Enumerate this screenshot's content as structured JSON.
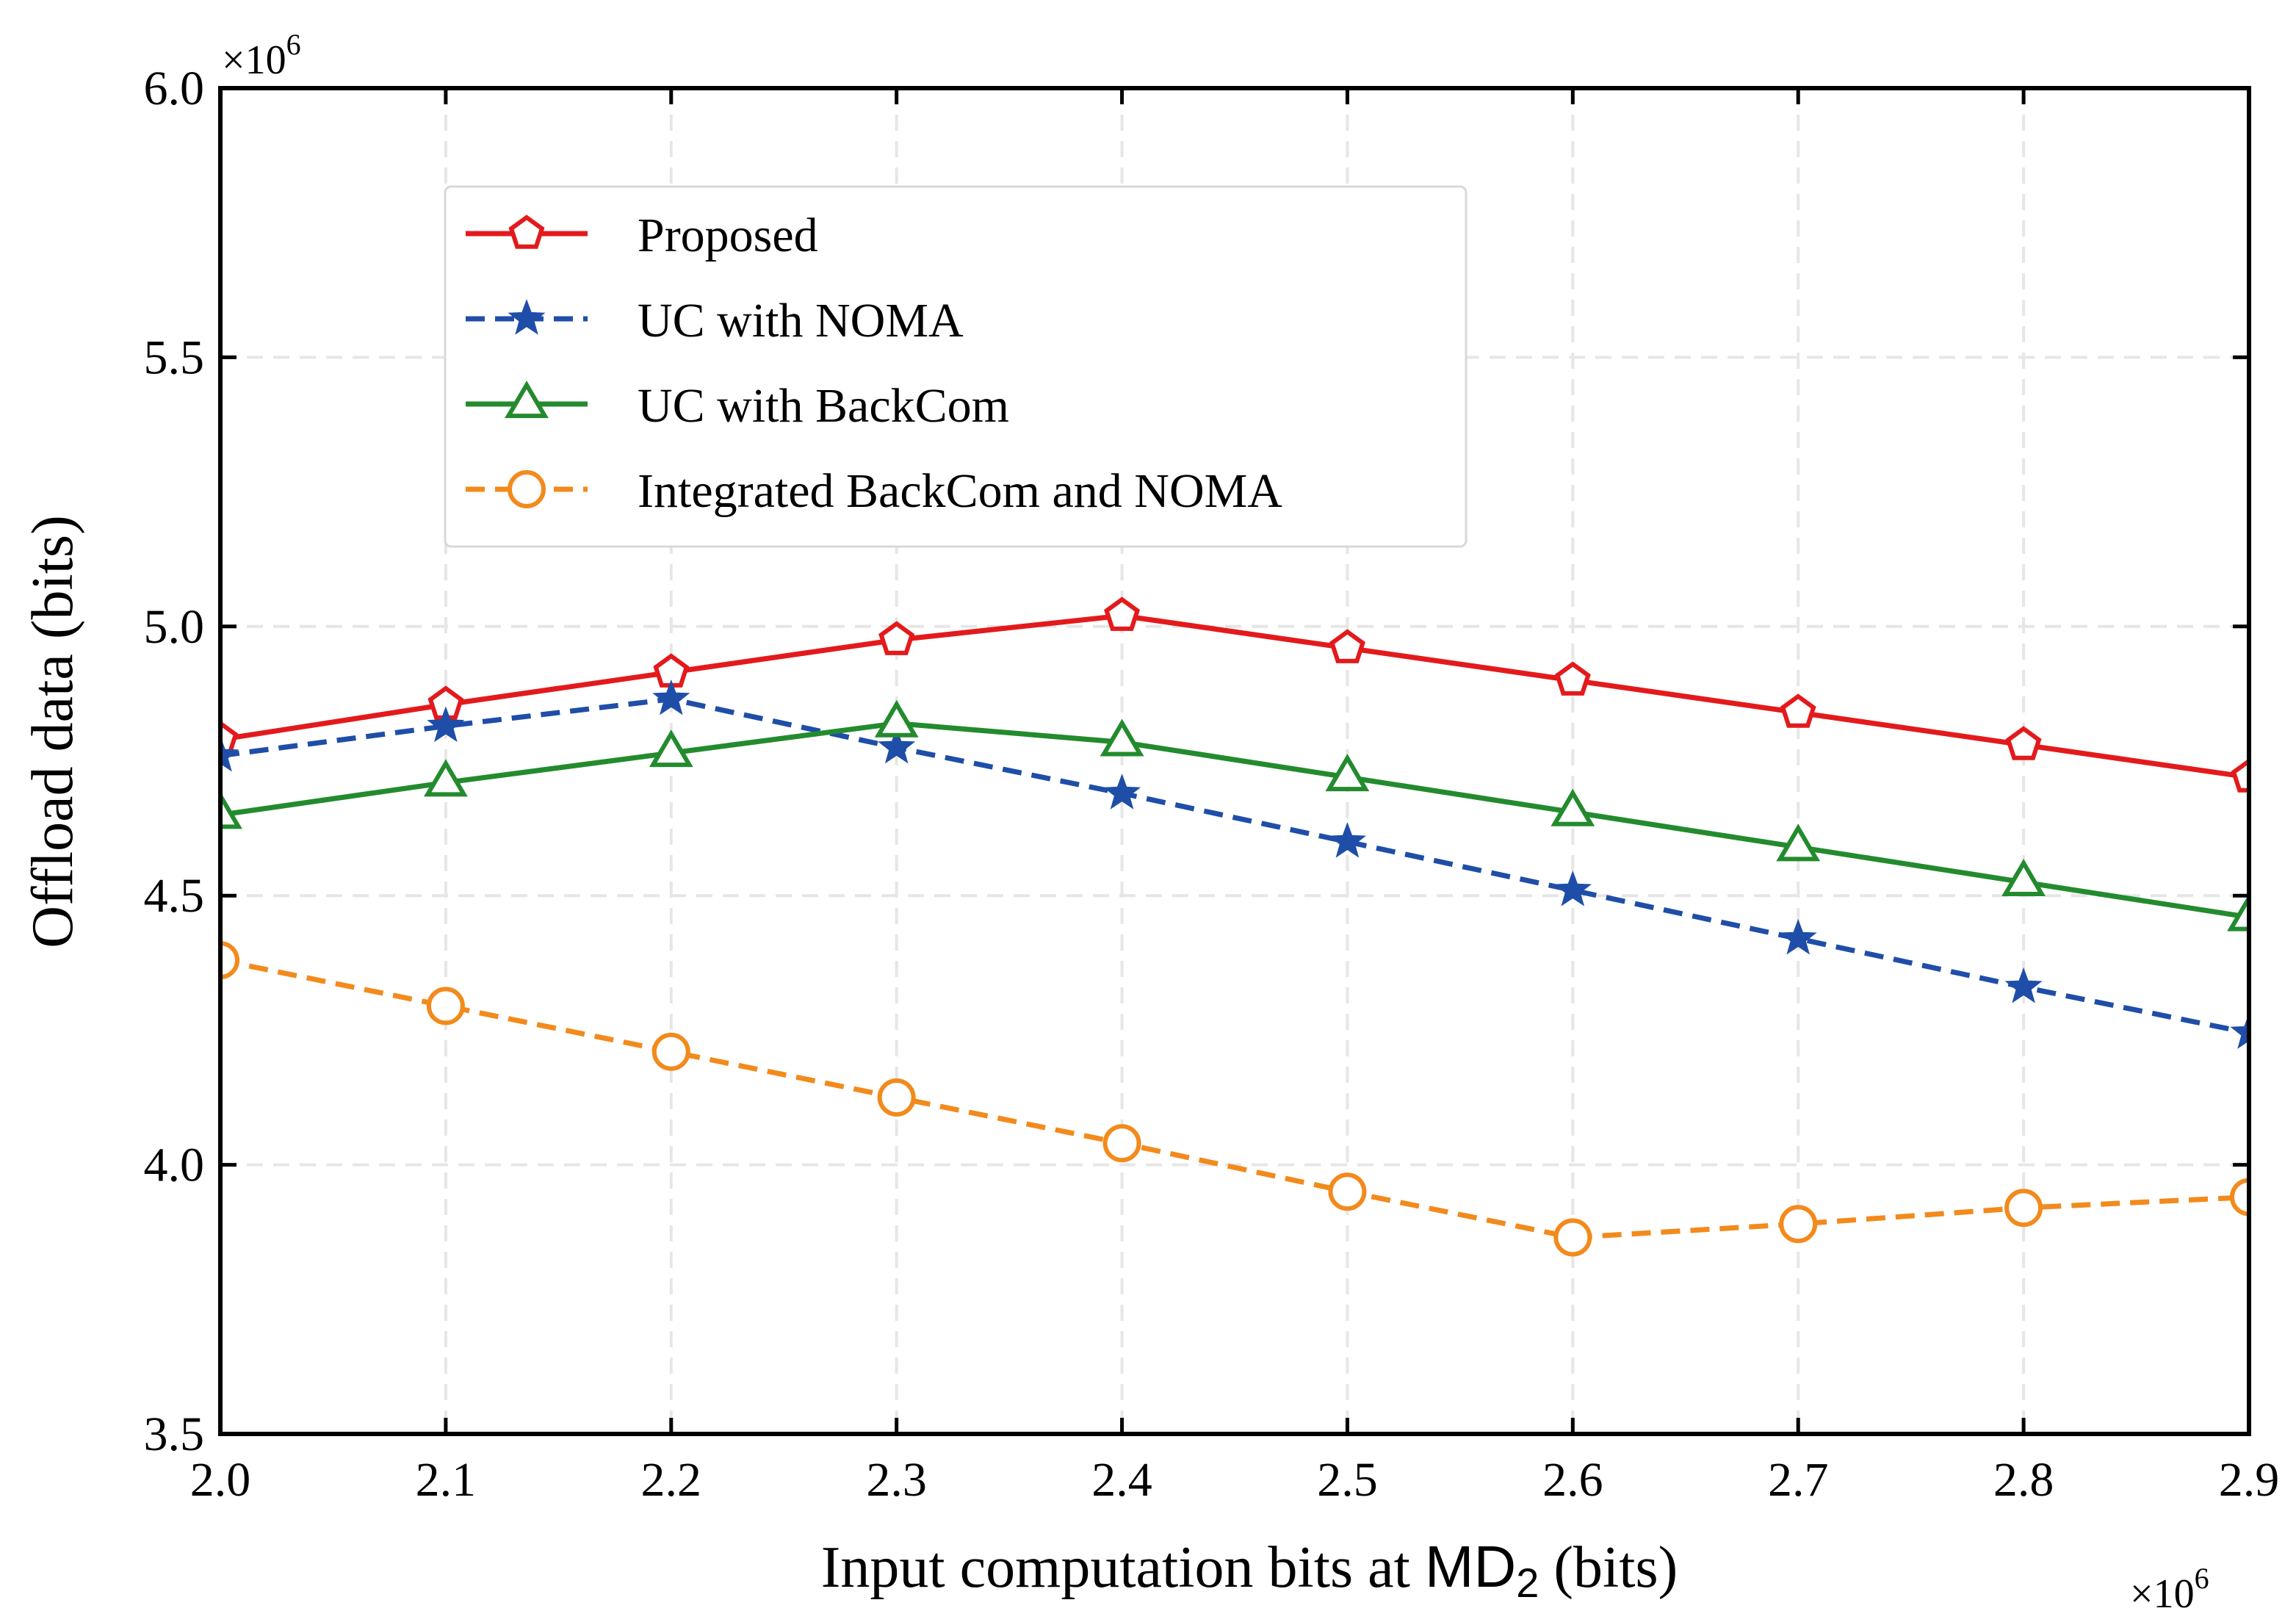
{
  "chart_data": {
    "type": "line",
    "title": "",
    "xlabel": "Input computation bits at",
    "xlabel_symbol": "MD",
    "xlabel_subscript": "2",
    "xlabel_unit": "(bits)",
    "ylabel": "Offload data (bits)",
    "x_multiplier": "×10",
    "y_multiplier": "×10",
    "multiplier_exponent": "6",
    "xlim": [
      2.0,
      2.9
    ],
    "ylim": [
      3.5,
      6.0
    ],
    "x_ticks": [
      "2.0",
      "2.1",
      "2.2",
      "2.3",
      "2.4",
      "2.5",
      "2.6",
      "2.7",
      "2.8",
      "2.9"
    ],
    "y_ticks": [
      "3.5",
      "4.0",
      "4.5",
      "5.0",
      "5.5",
      "6.0"
    ],
    "grid": true,
    "legend_position": "upper-middle",
    "x": [
      2.0,
      2.1,
      2.2,
      2.3,
      2.4,
      2.5,
      2.6,
      2.7,
      2.8,
      2.9
    ],
    "series": [
      {
        "name": "Proposed",
        "color": "#e31a1c",
        "marker": "pentagon",
        "dash": "solid",
        "values": [
          4.79,
          4.855,
          4.915,
          4.975,
          5.02,
          4.96,
          4.9,
          4.84,
          4.78,
          4.72
        ]
      },
      {
        "name": "UC with NOMA",
        "color": "#1f4ea8",
        "marker": "star",
        "dash": "dashed",
        "values": [
          4.76,
          4.815,
          4.865,
          4.775,
          4.69,
          4.6,
          4.51,
          4.42,
          4.33,
          4.245
        ]
      },
      {
        "name": "UC with BackCom",
        "color": "#238b2e",
        "marker": "triangle",
        "dash": "solid",
        "values": [
          4.65,
          4.71,
          4.765,
          4.82,
          4.785,
          4.72,
          4.655,
          4.59,
          4.525,
          4.46
        ]
      },
      {
        "name": "Integrated BackCom and NOMA",
        "color": "#f28a1c",
        "marker": "circle",
        "dash": "dashed",
        "values": [
          4.38,
          4.295,
          4.21,
          4.125,
          4.04,
          3.95,
          3.865,
          3.89,
          3.92,
          3.94
        ]
      }
    ]
  }
}
